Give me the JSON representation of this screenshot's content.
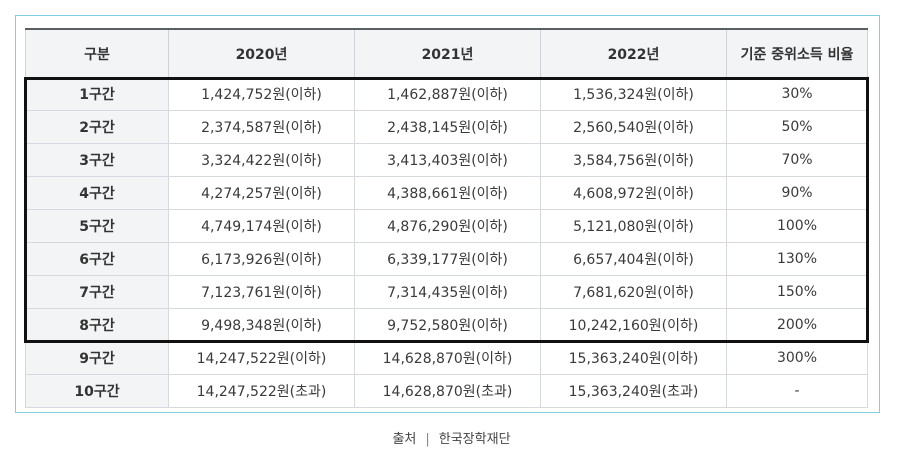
{
  "table": {
    "headers": [
      "구분",
      "2020년",
      "2021년",
      "2022년",
      "기준 중위소득 비율"
    ],
    "rows": [
      [
        "1구간",
        "1,424,752원(이하)",
        "1,462,887원(이하)",
        "1,536,324원(이하)",
        "30%"
      ],
      [
        "2구간",
        "2,374,587원(이하)",
        "2,438,145원(이하)",
        "2,560,540원(이하)",
        "50%"
      ],
      [
        "3구간",
        "3,324,422원(이하)",
        "3,413,403원(이하)",
        "3,584,756원(이하)",
        "70%"
      ],
      [
        "4구간",
        "4,274,257원(이하)",
        "4,388,661원(이하)",
        "4,608,972원(이하)",
        "90%"
      ],
      [
        "5구간",
        "4,749,174원(이하)",
        "4,876,290원(이하)",
        "5,121,080원(이하)",
        "100%"
      ],
      [
        "6구간",
        "6,173,926원(이하)",
        "6,339,177원(이하)",
        "6,657,404원(이하)",
        "130%"
      ],
      [
        "7구간",
        "7,123,761원(이하)",
        "7,314,435원(이하)",
        "7,681,620원(이하)",
        "150%"
      ],
      [
        "8구간",
        "9,498,348원(이하)",
        "9,752,580원(이하)",
        "10,242,160원(이하)",
        "200%"
      ],
      [
        "9구간",
        "14,247,522원(이하)",
        "14,628,870원(이하)",
        "15,363,240원(이하)",
        "300%"
      ],
      [
        "10구간",
        "14,247,522원(초과)",
        "14,628,870원(초과)",
        "15,363,240원(초과)",
        "-"
      ]
    ]
  },
  "caption": {
    "label": "출처",
    "separator": "|",
    "source": "한국장학재단"
  },
  "colors": {
    "frame_border": "#7fd0e0",
    "header_bg": "#f3f4f6",
    "highlight_border": "#111111"
  }
}
